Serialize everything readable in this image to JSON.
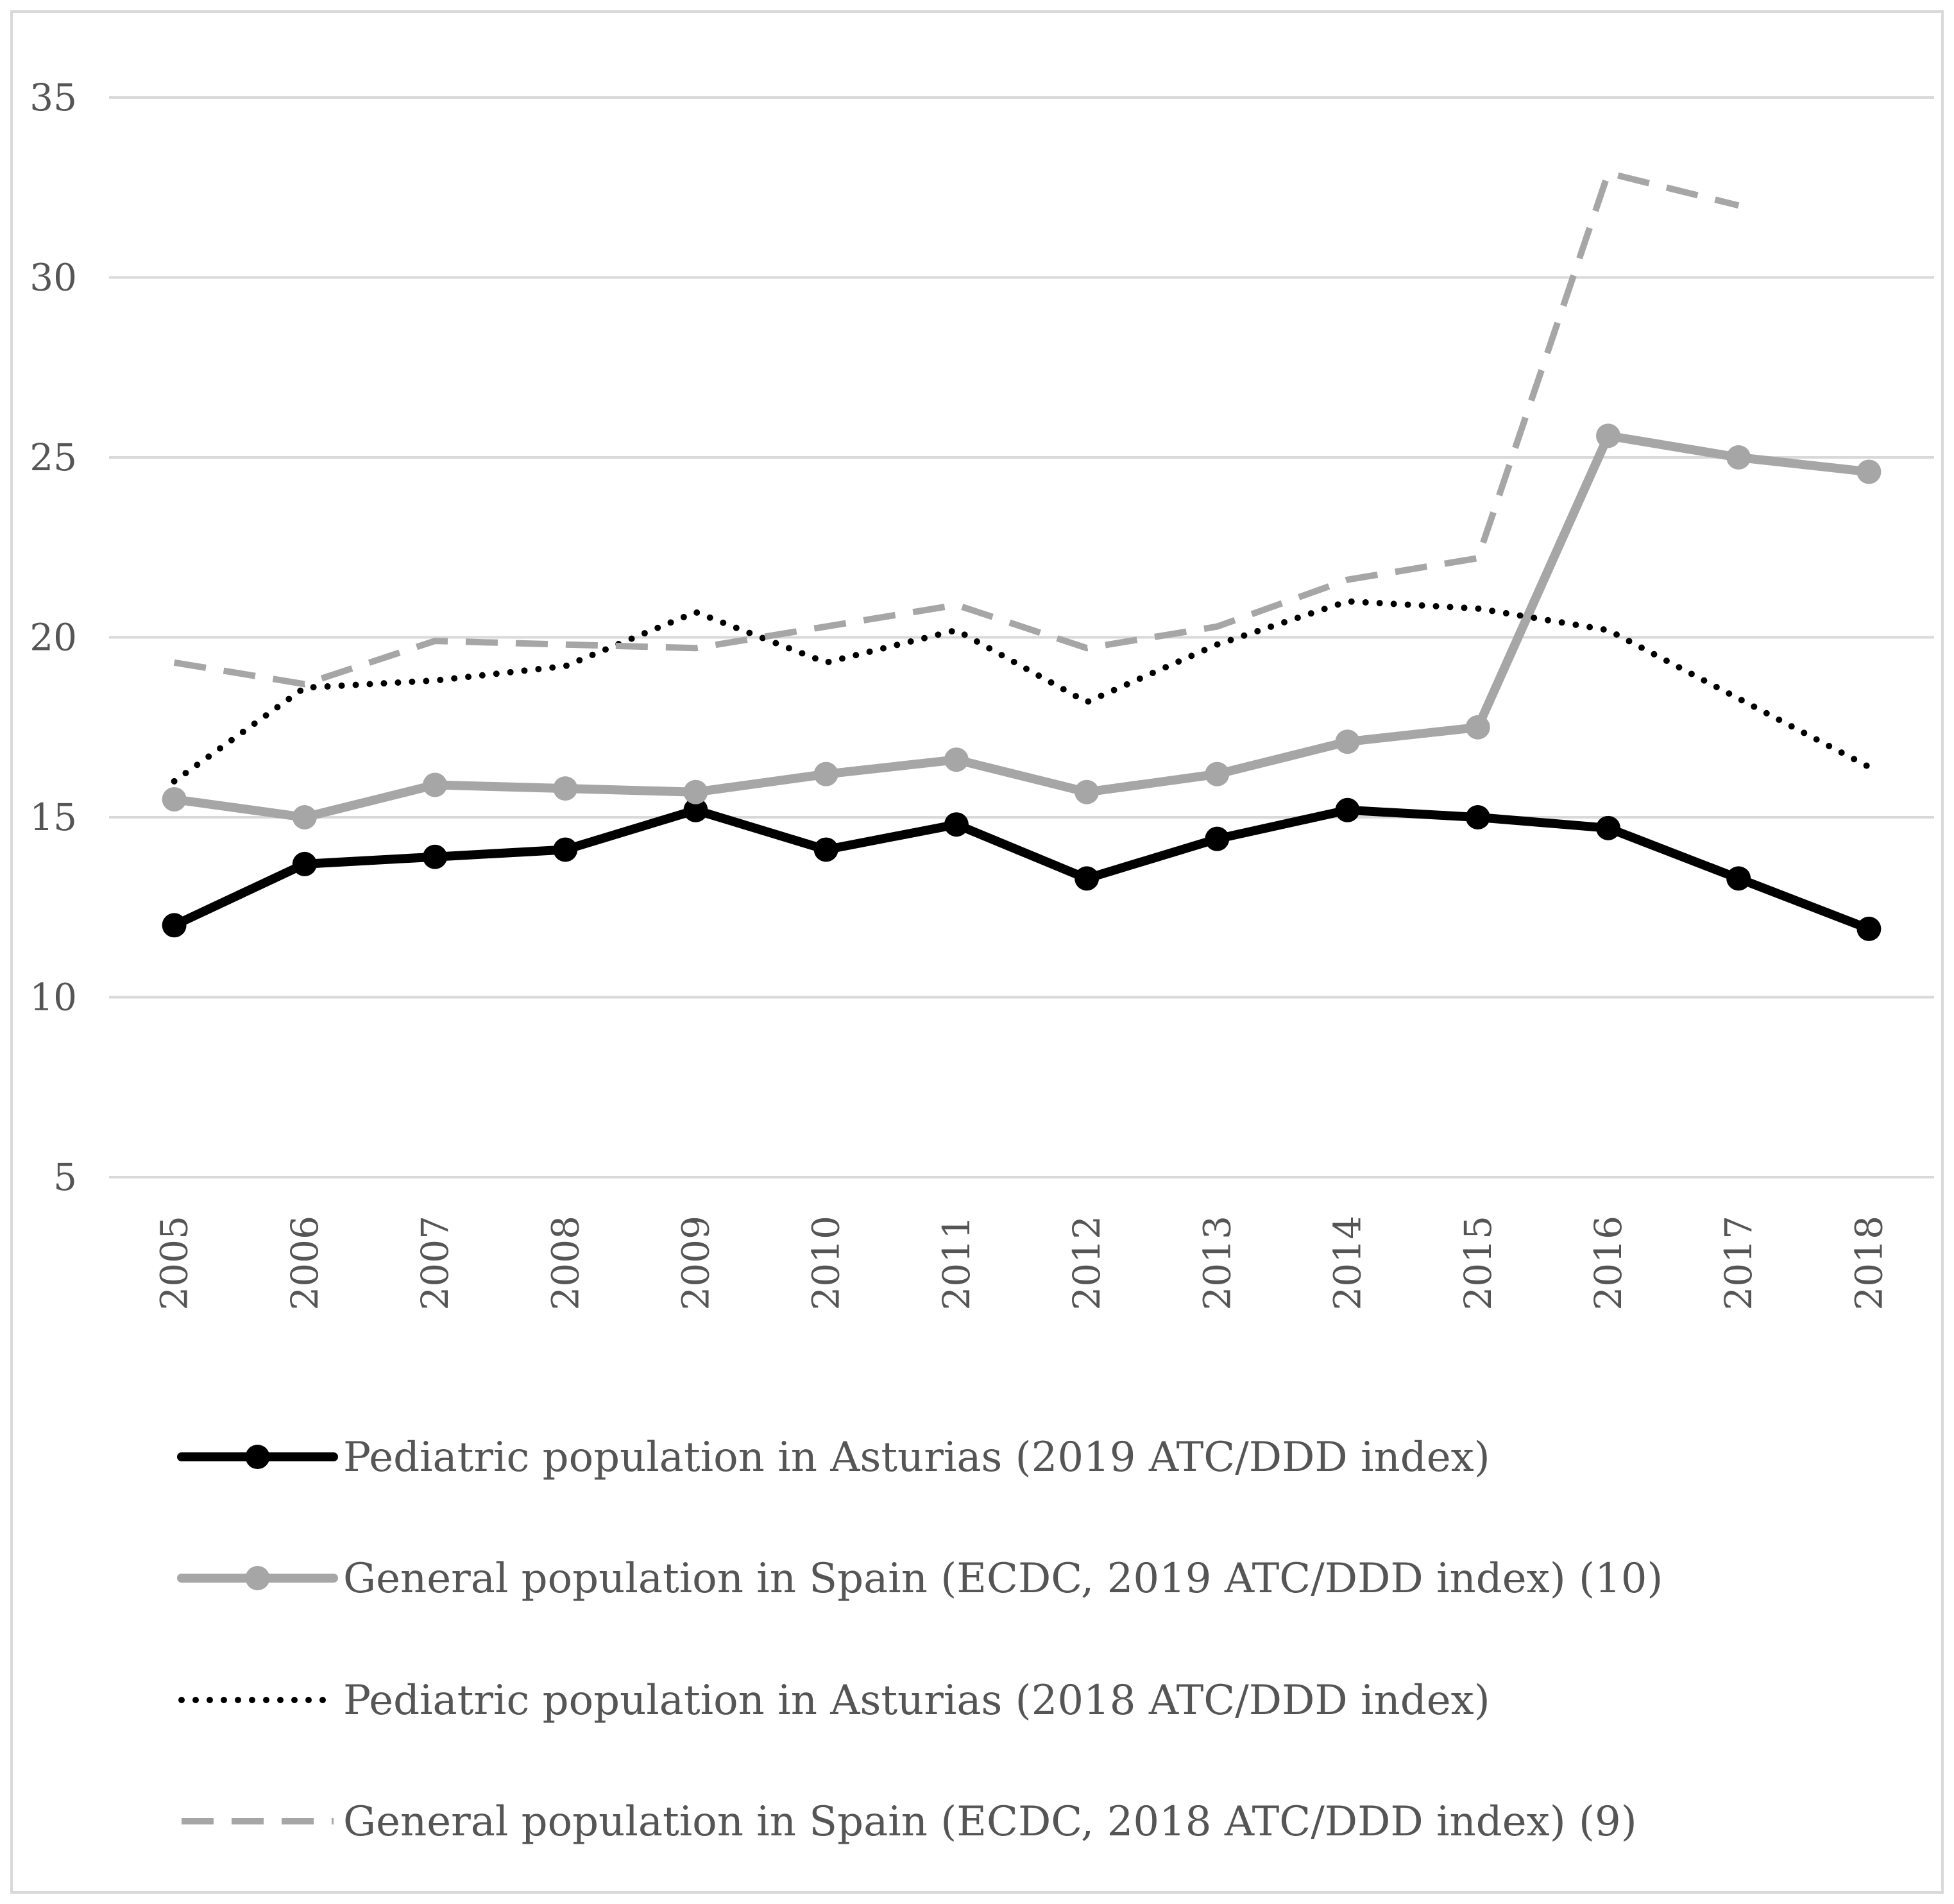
{
  "chart_data": {
    "type": "line",
    "title": "",
    "xlabel": "",
    "ylabel": "",
    "categories": [
      "2005",
      "2006",
      "2007",
      "2008",
      "2009",
      "2010",
      "2011",
      "2012",
      "2013",
      "2014",
      "2015",
      "2016",
      "2017",
      "2018"
    ],
    "ylim": [
      5,
      35
    ],
    "yticks": [
      5,
      10,
      15,
      20,
      25,
      30,
      35
    ],
    "grid": true,
    "legend_position": "bottom",
    "series": [
      {
        "name": "Pediatric population in Asturias (2019 ATC/DDD index)",
        "color": "#000000",
        "style": "solid",
        "markers": true,
        "values": [
          12.0,
          13.7,
          13.9,
          14.1,
          15.2,
          14.1,
          14.8,
          13.3,
          14.4,
          15.2,
          15.0,
          14.7,
          13.3,
          11.9
        ]
      },
      {
        "name": "General population in Spain (ECDC, 2019 ATC/DDD index) (10)",
        "color": "#a6a6a6",
        "style": "solid",
        "markers": true,
        "values": [
          15.5,
          15.0,
          15.9,
          15.8,
          15.7,
          16.2,
          16.6,
          15.7,
          16.2,
          17.1,
          17.5,
          25.6,
          25.0,
          24.6
        ]
      },
      {
        "name": "Pediatric population in Asturias (2018 ATC/DDD index)",
        "color": "#000000",
        "style": "dotted",
        "markers": false,
        "values": [
          16.0,
          18.6,
          18.8,
          19.2,
          20.7,
          19.3,
          20.2,
          18.2,
          19.8,
          21.0,
          20.8,
          20.2,
          18.3,
          16.4
        ]
      },
      {
        "name": "General population in Spain (ECDC, 2018 ATC/DDD index) (9)",
        "color": "#a6a6a6",
        "style": "dashed",
        "markers": false,
        "values": [
          19.3,
          18.7,
          19.9,
          19.8,
          19.7,
          20.3,
          20.9,
          19.7,
          20.3,
          21.6,
          22.2,
          32.9,
          32.0,
          null
        ]
      }
    ]
  }
}
